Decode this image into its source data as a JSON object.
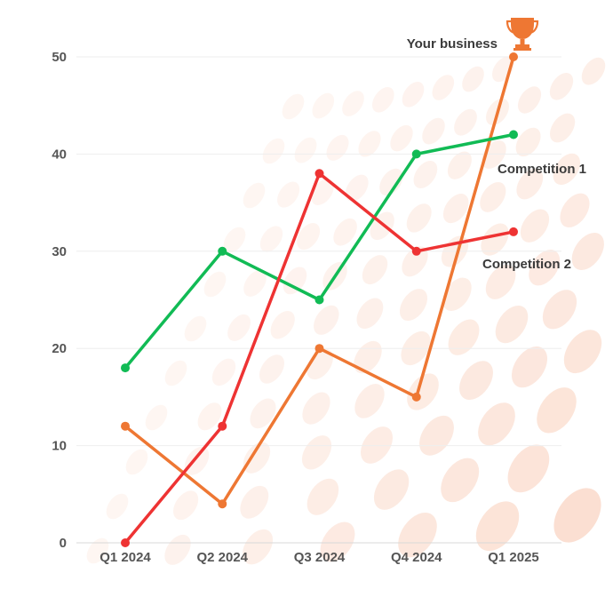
{
  "chart_data": {
    "type": "line",
    "categories": [
      "Q1 2024",
      "Q2 2024",
      "Q3 2024",
      "Q4 2024",
      "Q1 2025"
    ],
    "yticks": [
      "0",
      "10",
      "20",
      "30",
      "40",
      "50"
    ],
    "ylim": [
      0,
      50
    ],
    "grid": true,
    "series": [
      {
        "name": "Your business",
        "color": "#ee7733",
        "values": [
          12,
          4,
          20,
          15,
          50
        ]
      },
      {
        "name": "Competition 1",
        "color": "#11bb55",
        "values": [
          18,
          30,
          25,
          40,
          42
        ]
      },
      {
        "name": "Competition 2",
        "color": "#ee3333",
        "values": [
          0,
          12,
          38,
          30,
          32
        ]
      }
    ],
    "icon": "trophy-icon",
    "background_color": "#ffffff",
    "decoration_color": "#f9cdb8"
  }
}
